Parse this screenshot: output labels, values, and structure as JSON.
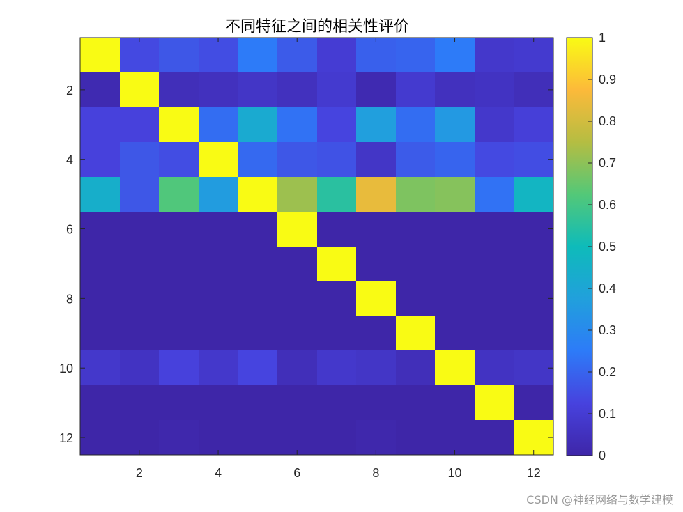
{
  "chart_data": {
    "type": "heatmap",
    "title": "不同特征之间的相关性评价",
    "rows": 12,
    "cols": 12,
    "x_ticks": [
      "2",
      "4",
      "6",
      "8",
      "10",
      "12"
    ],
    "y_ticks": [
      "2",
      "4",
      "6",
      "8",
      "10",
      "12"
    ],
    "x_tick_values": [
      2,
      4,
      6,
      8,
      10,
      12
    ],
    "y_tick_values": [
      2,
      4,
      6,
      8,
      10,
      12
    ],
    "colorbar": {
      "range": [
        0,
        1
      ],
      "ticks": [
        "0",
        "0.1",
        "0.2",
        "0.3",
        "0.4",
        "0.5",
        "0.6",
        "0.7",
        "0.8",
        "0.9",
        "1"
      ],
      "tick_values": [
        0,
        0.1,
        0.2,
        0.3,
        0.4,
        0.5,
        0.6,
        0.7,
        0.8,
        0.9,
        1
      ],
      "colormap": "parula"
    },
    "values": [
      [
        1.0,
        0.14,
        0.17,
        0.15,
        0.25,
        0.18,
        0.1,
        0.19,
        0.2,
        0.25,
        0.08,
        0.09
      ],
      [
        0.02,
        1.0,
        0.04,
        0.05,
        0.07,
        0.05,
        0.09,
        0.02,
        0.09,
        0.05,
        0.06,
        0.04
      ],
      [
        0.12,
        0.12,
        1.0,
        0.22,
        0.42,
        0.23,
        0.13,
        0.37,
        0.22,
        0.35,
        0.08,
        0.11
      ],
      [
        0.12,
        0.17,
        0.15,
        1.0,
        0.21,
        0.17,
        0.16,
        0.07,
        0.18,
        0.2,
        0.14,
        0.15
      ],
      [
        0.44,
        0.17,
        0.62,
        0.36,
        1.0,
        0.72,
        0.55,
        0.84,
        0.68,
        0.69,
        0.23,
        0.47
      ],
      [
        0.0,
        0.0,
        0.0,
        0.0,
        0.0,
        1.0,
        0.0,
        0.0,
        0.0,
        0.0,
        0.0,
        0.0
      ],
      [
        0.0,
        0.0,
        0.0,
        0.0,
        0.0,
        0.0,
        1.0,
        0.0,
        0.0,
        0.0,
        0.0,
        0.0
      ],
      [
        0.0,
        0.0,
        0.0,
        0.0,
        0.0,
        0.0,
        0.0,
        1.0,
        0.0,
        0.0,
        0.0,
        0.0
      ],
      [
        0.0,
        0.0,
        0.0,
        0.0,
        0.0,
        0.0,
        0.0,
        0.0,
        1.0,
        0.0,
        0.0,
        0.0
      ],
      [
        0.08,
        0.06,
        0.12,
        0.08,
        0.13,
        0.04,
        0.08,
        0.07,
        0.04,
        1.0,
        0.06,
        0.07
      ],
      [
        0.0,
        0.0,
        0.0,
        0.0,
        0.0,
        0.0,
        0.0,
        0.0,
        0.0,
        0.0,
        1.0,
        0.0
      ],
      [
        0.0,
        0.0,
        0.01,
        0.0,
        0.0,
        0.0,
        0.0,
        0.01,
        0.0,
        0.0,
        0.0,
        1.0
      ]
    ]
  },
  "watermark": "CSDN @神经网络与数学建模"
}
